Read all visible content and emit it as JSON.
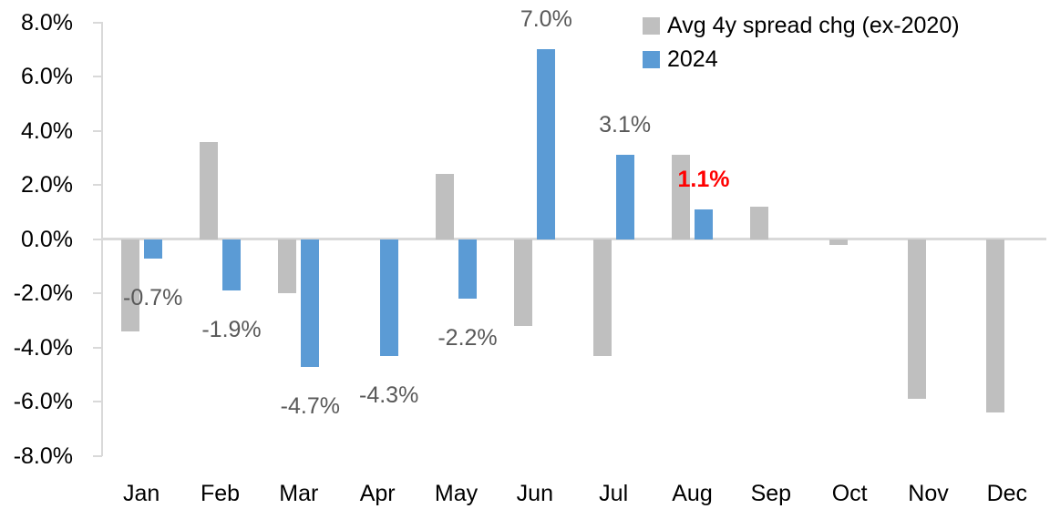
{
  "chart_data": {
    "type": "bar",
    "title": "",
    "xlabel": "",
    "ylabel": "",
    "categories": [
      "Jan",
      "Feb",
      "Mar",
      "Apr",
      "May",
      "Jun",
      "Jul",
      "Aug",
      "Sep",
      "Oct",
      "Nov",
      "Dec"
    ],
    "series": [
      {
        "name": "Avg 4y spread chg (ex-2020)",
        "color": "#BFBFBF",
        "values": [
          -3.4,
          3.6,
          -2.0,
          0.0,
          2.4,
          -3.2,
          -4.3,
          3.1,
          1.2,
          -0.2,
          -5.9,
          -6.4
        ]
      },
      {
        "name": "2024",
        "color": "#5B9BD5",
        "values": [
          -0.7,
          -1.9,
          -4.7,
          -4.3,
          -2.2,
          7.0,
          3.1,
          1.1,
          null,
          null,
          null,
          null
        ]
      }
    ],
    "data_labels": [
      {
        "category_index": 0,
        "series": "2024",
        "text": "-0.7%",
        "highlight": false
      },
      {
        "category_index": 1,
        "series": "2024",
        "text": "-1.9%",
        "highlight": false
      },
      {
        "category_index": 2,
        "series": "2024",
        "text": "-4.7%",
        "highlight": false
      },
      {
        "category_index": 3,
        "series": "2024",
        "text": "-4.3%",
        "highlight": false
      },
      {
        "category_index": 4,
        "series": "2024",
        "text": "-2.2%",
        "highlight": false
      },
      {
        "category_index": 5,
        "series": "2024",
        "text": "7.0%",
        "highlight": false
      },
      {
        "category_index": 6,
        "series": "2024",
        "text": "3.1%",
        "highlight": false
      },
      {
        "category_index": 7,
        "series": "2024",
        "text": "1.1%",
        "highlight": true
      }
    ],
    "y_axis": {
      "min": -8,
      "max": 8,
      "step": 2,
      "tick_labels": [
        "8.0%",
        "6.0%",
        "4.0%",
        "2.0%",
        "0.0%",
        "-2.0%",
        "-4.0%",
        "-6.0%",
        "-8.0%"
      ]
    },
    "legend": {
      "position": "top-right",
      "entries": [
        "Avg 4y spread chg (ex-2020)",
        "2024"
      ]
    },
    "grid": "zero-line-only"
  },
  "colors": {
    "series_gray": "#BFBFBF",
    "series_blue": "#5B9BD5",
    "axis_line": "#D9D9D9",
    "axis_text": "#000000",
    "data_label": "#595959",
    "data_label_highlight": "#FF0000",
    "background": "#FFFFFF"
  }
}
